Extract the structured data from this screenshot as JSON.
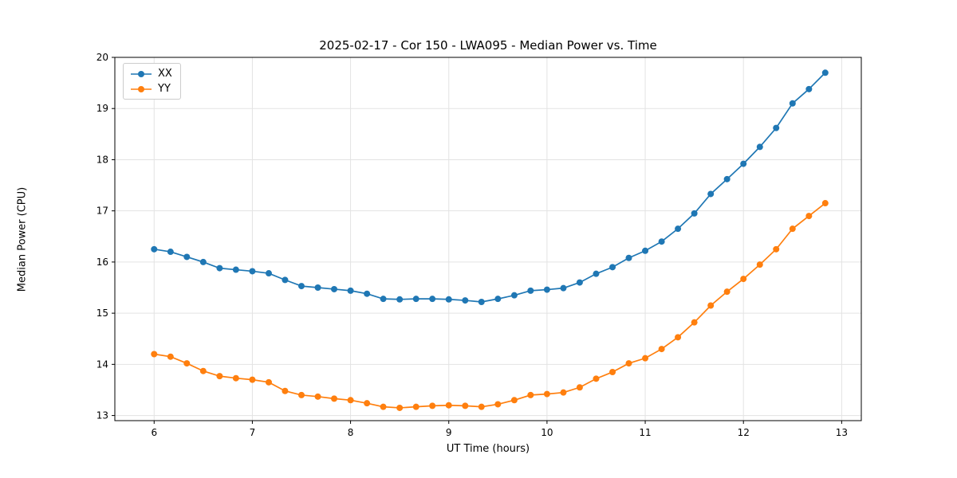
{
  "chart_data": {
    "type": "line",
    "title": "2025-02-17 - Cor 150 - LWA095 - Median Power vs. Time",
    "xlabel": "UT Time (hours)",
    "ylabel": "Median Power (CPU)",
    "xlim": [
      5.6,
      13.2
    ],
    "ylim": [
      12.9,
      20.0
    ],
    "xticks": [
      6,
      7,
      8,
      9,
      10,
      11,
      12,
      13
    ],
    "yticks": [
      13,
      14,
      15,
      16,
      17,
      18,
      19,
      20
    ],
    "grid": true,
    "grid_color": "#e3e3e3",
    "legend_position": "upper-left",
    "marker": "circle",
    "x": [
      6.0,
      6.167,
      6.333,
      6.5,
      6.667,
      6.833,
      7.0,
      7.167,
      7.333,
      7.5,
      7.667,
      7.833,
      8.0,
      8.167,
      8.333,
      8.5,
      8.667,
      8.833,
      9.0,
      9.167,
      9.333,
      9.5,
      9.667,
      9.833,
      10.0,
      10.167,
      10.333,
      10.5,
      10.667,
      10.833,
      11.0,
      11.167,
      11.333,
      11.5,
      11.667,
      11.833,
      12.0,
      12.167,
      12.333,
      12.5,
      12.667,
      12.833
    ],
    "series": [
      {
        "name": "XX",
        "color": "#1f77b4",
        "values": [
          16.25,
          16.2,
          16.1,
          16.0,
          15.88,
          15.85,
          15.82,
          15.78,
          15.65,
          15.53,
          15.5,
          15.47,
          15.44,
          15.38,
          15.28,
          15.27,
          15.28,
          15.28,
          15.27,
          15.25,
          15.22,
          15.28,
          15.35,
          15.44,
          15.46,
          15.49,
          15.6,
          15.77,
          15.9,
          16.08,
          16.22,
          16.4,
          16.65,
          16.95,
          17.33,
          17.62,
          17.92,
          18.25,
          18.62,
          19.1,
          19.38,
          19.7
        ]
      },
      {
        "name": "YY",
        "color": "#ff7f0e",
        "values": [
          14.2,
          14.15,
          14.02,
          13.87,
          13.77,
          13.73,
          13.7,
          13.65,
          13.48,
          13.4,
          13.37,
          13.33,
          13.3,
          13.24,
          13.17,
          13.15,
          13.17,
          13.19,
          13.2,
          13.19,
          13.17,
          13.22,
          13.3,
          13.4,
          13.42,
          13.45,
          13.55,
          13.72,
          13.85,
          14.02,
          14.12,
          14.3,
          14.53,
          14.82,
          15.15,
          15.42,
          15.67,
          15.95,
          16.25,
          16.65,
          16.9,
          17.15
        ]
      }
    ]
  }
}
